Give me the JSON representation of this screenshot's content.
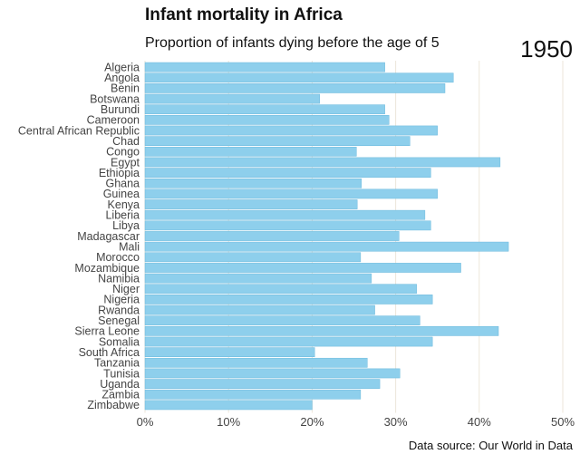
{
  "chart_data": {
    "type": "bar",
    "orientation": "horizontal",
    "title": "Infant mortality in Africa",
    "subtitle": "Proportion of infants dying before the age of 5",
    "year_label": "1950",
    "source": "Data source: Our World in Data",
    "xlim": [
      0,
      50
    ],
    "x_ticks": [
      0,
      10,
      20,
      30,
      40,
      50
    ],
    "x_tick_labels": [
      "0%",
      "10%",
      "20%",
      "30%",
      "40%",
      "50%"
    ],
    "grid": "vertical",
    "bar_color": "#8ecfec",
    "categories": [
      "Algeria",
      "Angola",
      "Benin",
      "Botswana",
      "Burundi",
      "Cameroon",
      "Central African Republic",
      "Chad",
      "Congo",
      "Egypt",
      "Ethiopia",
      "Ghana",
      "Guinea",
      "Kenya",
      "Liberia",
      "Libya",
      "Madagascar",
      "Mali",
      "Morocco",
      "Mozambique",
      "Namibia",
      "Niger",
      "Nigeria",
      "Rwanda",
      "Senegal",
      "Sierra Leone",
      "Somalia",
      "South Africa",
      "Tanzania",
      "Tunisia",
      "Uganda",
      "Zambia",
      "Zimbabwe"
    ],
    "values": [
      28.7,
      36.9,
      35.9,
      20.9,
      28.7,
      29.2,
      35.0,
      31.7,
      25.3,
      42.5,
      34.2,
      25.9,
      35.0,
      25.4,
      33.5,
      34.2,
      30.4,
      43.5,
      25.8,
      37.8,
      27.1,
      32.5,
      34.4,
      27.5,
      32.9,
      42.3,
      34.4,
      20.3,
      26.6,
      30.5,
      28.1,
      25.8,
      20.0
    ]
  }
}
